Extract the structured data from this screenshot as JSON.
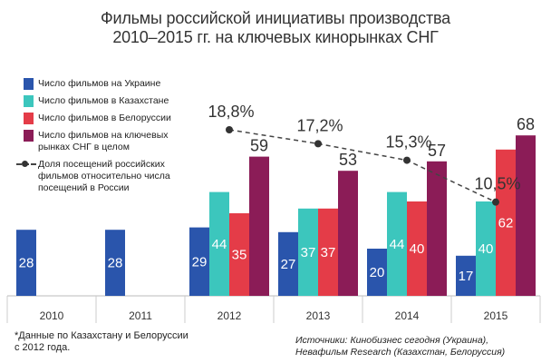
{
  "title_line1": "Фильмы российской инициативы производства",
  "title_line2": "2010–2015 гг. на ключевых кинорынках СНГ",
  "footnote": "*Данные по Казахстану и Белоруссии с 2012 года.",
  "sources": "Источники: Кинобизнес сегодня (Украина), Невафильм Research (Казахстан, Белоруссия)",
  "colors": {
    "ukraine": "#2a55ac",
    "kazakhstan": "#3cc6bd",
    "belarus": "#e43c48",
    "total": "#8b1c57",
    "line": "#444444"
  },
  "chart_data": {
    "type": "bar",
    "title": "Фильмы российской инициативы производства 2010–2015 гг. на ключевых кинорынках СНГ",
    "categories": [
      "2010",
      "2011",
      "2012",
      "2013",
      "2014",
      "2015"
    ],
    "ylim": [
      0,
      75
    ],
    "series": [
      {
        "key": "ukraine",
        "name": "Число фильмов на Украине",
        "values": [
          28,
          28,
          29,
          27,
          20,
          17
        ]
      },
      {
        "key": "kazakhstan",
        "name": "Число фильмов в Казахстане",
        "values": [
          null,
          null,
          44,
          37,
          44,
          40
        ]
      },
      {
        "key": "belarus",
        "name": "Число фильмов в Белоруссии",
        "values": [
          null,
          null,
          35,
          37,
          40,
          62
        ]
      },
      {
        "key": "total",
        "name": "Число фильмов на ключевых рынках СНГ в целом",
        "values": [
          null,
          null,
          59,
          53,
          57,
          68
        ]
      }
    ],
    "line_series": {
      "name": "Доля посещений российских фильмов относительно числа посещений в России",
      "values": [
        null,
        null,
        18.8,
        17.2,
        15.3,
        10.5
      ],
      "labels": [
        null,
        null,
        "18,8%",
        "17,2%",
        "15,3%",
        "10,5%"
      ],
      "range": [
        0,
        25
      ]
    }
  }
}
